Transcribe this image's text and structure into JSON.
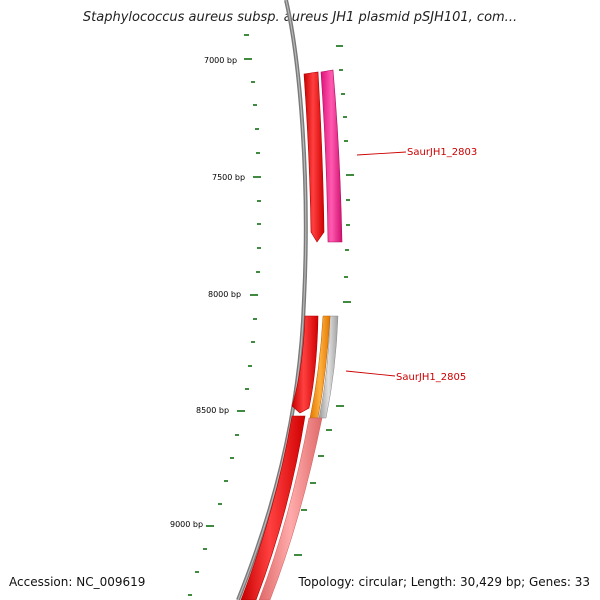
{
  "title": "Staphylococcus aureus subsp. aureus JH1 plasmid pSJH101, com...",
  "footer": {
    "accession": "Accession: NC_009619",
    "summary": "Topology: circular; Length: 30,429 bp; Genes: 33"
  },
  "axis": {
    "tick_labels": [
      "7000 bp",
      "7500 bp",
      "8000 bp",
      "8500 bp",
      "9000 bp"
    ]
  },
  "genes": [
    {
      "name": "SaurJH1_2803",
      "color": "#ff1493"
    },
    {
      "name": "SaurJH1_2805",
      "color": "#ff8c00"
    }
  ],
  "colors": {
    "backbone": "#808080",
    "cds_forward": "#ff0000",
    "cds_reverse": "#ff1493",
    "orf": "#ff8c00",
    "orf_grey": "#b0b0b0",
    "salmon": "#f08080",
    "tick": "#006400",
    "label_line": "#cc0000"
  }
}
